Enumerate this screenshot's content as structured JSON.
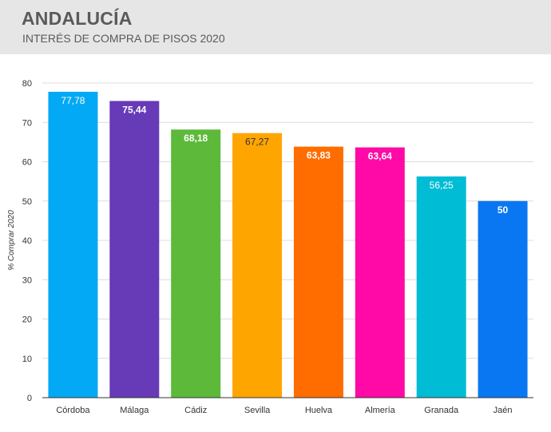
{
  "header": {
    "title": "ANDALUCÍA",
    "subtitle": "INTERÉS DE COMPRA DE PISOS 2020"
  },
  "chart_data": {
    "type": "bar",
    "title": "ANDALUCÍA",
    "subtitle": "INTERÉS DE COMPRA DE PISOS 2020",
    "xlabel": "",
    "ylabel": "% Comprar 2020",
    "ylim": [
      0,
      80
    ],
    "yticks": [
      0,
      10,
      20,
      30,
      40,
      50,
      60,
      70,
      80
    ],
    "grid": true,
    "categories": [
      "Córdoba",
      "Málaga",
      "Cádiz",
      "Sevilla",
      "Huelva",
      "Almería",
      "Granada",
      "Jaén"
    ],
    "values": [
      77.78,
      75.44,
      68.18,
      67.27,
      63.83,
      63.64,
      56.25,
      50
    ],
    "value_labels": [
      "77,78",
      "75,44",
      "68,18",
      "67,27",
      "63,83",
      "63,64",
      "56,25",
      "50"
    ],
    "colors": [
      "#03a9f4",
      "#673ab7",
      "#5db93a",
      "#ffa500",
      "#ff6d00",
      "#ff0aa6",
      "#00bcd4",
      "#0a77f2"
    ],
    "label_colors": [
      "#ffffff",
      "#ffffff",
      "#ffffff",
      "#333333",
      "#ffffff",
      "#ffffff",
      "#ffffff",
      "#ffffff"
    ],
    "label_bold": [
      false,
      true,
      true,
      false,
      true,
      true,
      false,
      true
    ]
  }
}
